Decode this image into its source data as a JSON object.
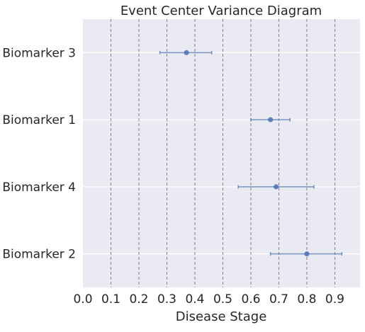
{
  "chart_data": {
    "type": "errorbar",
    "title": "Event Center Variance Diagram",
    "xlabel": "Disease Stage",
    "ylabel": "",
    "xlim": [
      0.0,
      0.99
    ],
    "x_ticks": [
      0.0,
      0.1,
      0.2,
      0.3,
      0.4,
      0.5,
      0.6,
      0.7,
      0.8,
      0.9
    ],
    "x_tick_labels": [
      "0.0",
      "0.1",
      "0.2",
      "0.3",
      "0.4",
      "0.5",
      "0.6",
      "0.7",
      "0.8",
      "0.9"
    ],
    "categories": [
      "Biomarker 3",
      "Biomarker 1",
      "Biomarker 4",
      "Biomarker 2"
    ],
    "points": [
      {
        "label": "Biomarker 3",
        "center": 0.37,
        "low": 0.275,
        "high": 0.46
      },
      {
        "label": "Biomarker 1",
        "center": 0.67,
        "low": 0.6,
        "high": 0.74
      },
      {
        "label": "Biomarker 4",
        "center": 0.69,
        "low": 0.555,
        "high": 0.825
      },
      {
        "label": "Biomarker 2",
        "center": 0.8,
        "low": 0.67,
        "high": 0.925
      }
    ],
    "vertical_dashed_lines": [
      0.1,
      0.2,
      0.3,
      0.4,
      0.5,
      0.6,
      0.7,
      0.8,
      0.9
    ],
    "grid": true,
    "colors": {
      "background": "#eaeaf2",
      "grid": "#ffffff",
      "dashed_line": "#808080",
      "marker": "#4c72b0",
      "text": "#262626"
    }
  }
}
